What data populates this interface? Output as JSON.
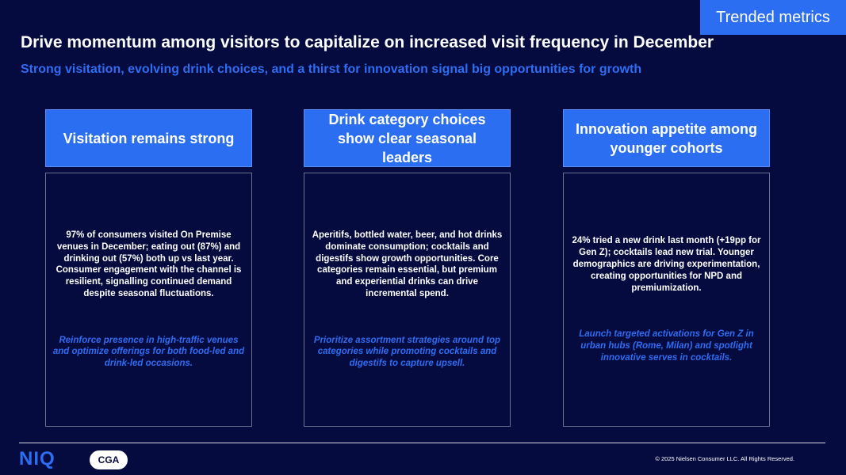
{
  "header": {
    "tag_label": "Trended metrics",
    "title": "Drive momentum among visitors to capitalize on increased visit frequency in December",
    "subtitle": "Strong visitation, evolving drink choices, and a thirst for innovation signal big opportunities for growth"
  },
  "cards": [
    {
      "heading": "Visitation remains strong",
      "body": "97% of consumers visited On Premise venues in December; eating out (87%) and drinking out (57%) both up vs last year. Consumer engagement with the channel is resilient, signalling continued demand despite seasonal fluctuations.",
      "action": "Reinforce presence in high-traffic venues and optimize offerings for both food-led and drink-led occasions."
    },
    {
      "heading": "Drink category choices show clear seasonal leaders",
      "body": "Aperitifs, bottled water, beer, and hot drinks dominate consumption; cocktails and digestifs show growth opportunities. Core categories remain essential, but premium and experiential drinks can drive incremental spend.",
      "action": "Prioritize assortment strategies around top categories while promoting cocktails and digestifs to capture upsell."
    },
    {
      "heading": "Innovation appetite among younger cohorts",
      "body": "24% tried a new drink last month (+19pp for Gen Z); cocktails lead new trial. Younger demographics are driving experimentation, creating opportunities for NPD and premiumization.",
      "action": "Launch targeted activations for Gen Z in urban hubs (Rome, Milan) and spotlight innovative serves in cocktails."
    }
  ],
  "footer": {
    "niq_logo_text": "NIQ",
    "cga_logo_text": "CGA",
    "copyright": "© 2025 Nielsen Consumer LLC. All Rights Reserved."
  },
  "colors": {
    "background": "#050a3f",
    "accent": "#2b6ef2",
    "subtitle": "#2e6df0"
  }
}
